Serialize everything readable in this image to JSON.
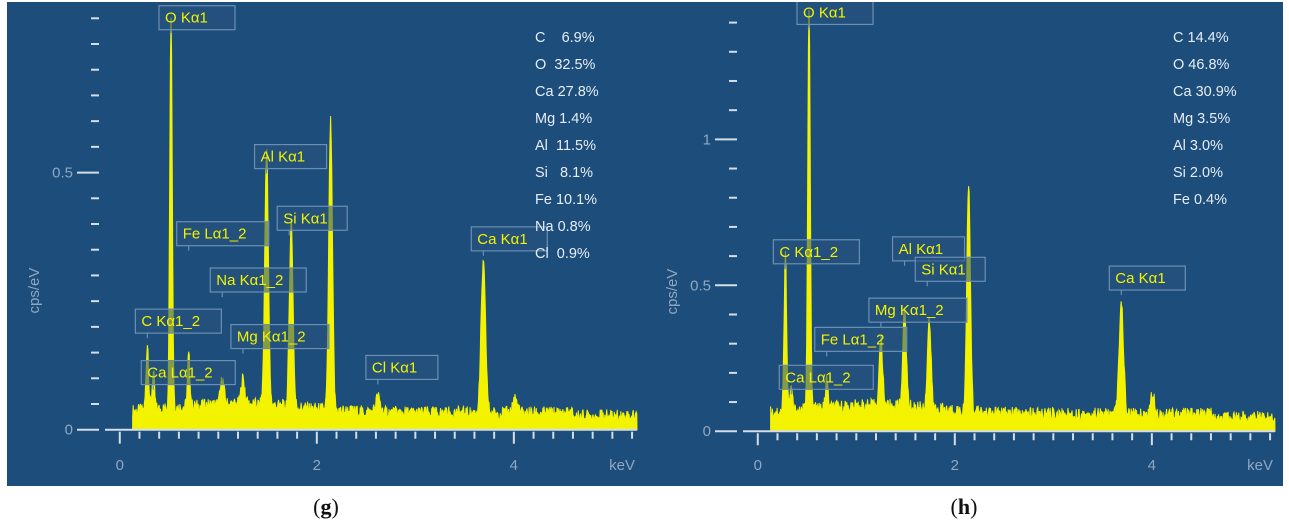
{
  "chart_data": [
    {
      "type": "line",
      "caption": "g",
      "xlabel": "keV",
      "ylabel": "cps/eV",
      "xlim": [
        -0.15,
        5.25
      ],
      "ylim": [
        -0.02,
        0.82
      ],
      "x_ticks": [
        "0",
        "2",
        "4"
      ],
      "x_tick_values": [
        0,
        2,
        4
      ],
      "y_ticks": [
        "0",
        "0.5"
      ],
      "y_tick_values": [
        0,
        0.5
      ],
      "colors": {
        "background": "#1d4d7a",
        "spectrum": "#f3f300",
        "label_text": "#f3f300",
        "label_border": "#6b8fb3",
        "axis": "#d4dde8"
      },
      "composition": [
        "C    6.9%",
        "O  32.5%",
        "Ca 27.8%",
        "Mg 1.4%",
        "Al  11.5%",
        "Si   8.1%",
        "Fe 10.1%",
        "Na 0.8%",
        "Cl  0.9%"
      ],
      "peaks": [
        {
          "label": "O Kα1",
          "x": 0.52,
          "y": 0.77
        },
        {
          "label": "C Kα1_2",
          "x": 0.28,
          "y": 0.13
        },
        {
          "label": "Ca Lα1_2",
          "x": 0.34,
          "y": 0.07
        },
        {
          "label": "Fe Lα1_2",
          "x": 0.7,
          "y": 0.1
        },
        {
          "label": "Na Kα1_2",
          "x": 1.04,
          "y": 0.05
        },
        {
          "label": "Mg Kα1_2",
          "x": 1.25,
          "y": 0.05
        },
        {
          "label": "Al Kα1",
          "x": 1.49,
          "y": 0.5
        },
        {
          "label": "Si Kα1",
          "x": 1.74,
          "y": 0.36
        },
        {
          "label": "",
          "x": 2.14,
          "y": 0.56
        },
        {
          "label": "Cl Kα1",
          "x": 2.62,
          "y": 0.03
        },
        {
          "label": "Ca Kα1",
          "x": 3.69,
          "y": 0.29
        },
        {
          "label": "",
          "x": 4.01,
          "y": 0.03
        }
      ],
      "annotations": [
        {
          "text": "O Kα1",
          "x": 0.52,
          "y": 0.77
        },
        {
          "text": "Al Kα1",
          "x": 1.49,
          "y": 0.5
        },
        {
          "text": "Si Kα1",
          "x": 1.72,
          "y": 0.38
        },
        {
          "text": "Fe Lα1_2",
          "x": 0.7,
          "y": 0.35
        },
        {
          "text": "Na Kα1_2",
          "x": 1.04,
          "y": 0.26
        },
        {
          "text": "C Kα1_2",
          "x": 0.28,
          "y": 0.18
        },
        {
          "text": "Mg Kα1_2",
          "x": 1.25,
          "y": 0.15
        },
        {
          "text": "Ca Lα1_2",
          "x": 0.34,
          "y": 0.08
        },
        {
          "text": "Cl Kα1",
          "x": 2.62,
          "y": 0.09
        },
        {
          "text": "Ca Kα1",
          "x": 3.69,
          "y": 0.34
        }
      ]
    },
    {
      "type": "line",
      "caption": "h",
      "xlabel": "keV",
      "ylabel": "cps/eV",
      "xlim": [
        -0.15,
        5.25
      ],
      "ylim": [
        -0.03,
        1.45
      ],
      "x_ticks": [
        "0",
        "2",
        "4"
      ],
      "x_tick_values": [
        0,
        2,
        4
      ],
      "y_ticks": [
        "0",
        "0.5",
        "1"
      ],
      "y_tick_values": [
        0,
        0.5,
        1
      ],
      "colors": {
        "background": "#1d4d7a",
        "spectrum": "#f3f300",
        "label_text": "#f3f300",
        "label_border": "#6b8fb3",
        "axis": "#d4dde8"
      },
      "composition": [
        "C 14.4%",
        "O 46.8%",
        "Ca 30.9%",
        "Mg 3.5%",
        "Al 3.0%",
        "Si 2.0%",
        "Fe 0.4%"
      ],
      "peaks": [
        {
          "label": "O Kα1",
          "x": 0.52,
          "y": 1.38
        },
        {
          "label": "C Kα1_2",
          "x": 0.28,
          "y": 0.55
        },
        {
          "label": "Ca Lα1_2",
          "x": 0.34,
          "y": 0.08
        },
        {
          "label": "Fe Lα1_2",
          "x": 0.7,
          "y": 0.1
        },
        {
          "label": "Mg Kα1_2",
          "x": 1.25,
          "y": 0.22
        },
        {
          "label": "Al Kα1",
          "x": 1.49,
          "y": 0.33
        },
        {
          "label": "Si Kα1",
          "x": 1.74,
          "y": 0.3
        },
        {
          "label": "",
          "x": 2.14,
          "y": 0.77
        },
        {
          "label": "Ca Kα1",
          "x": 3.69,
          "y": 0.38
        },
        {
          "label": "",
          "x": 4.01,
          "y": 0.07
        }
      ],
      "annotations": [
        {
          "text": "O Kα1",
          "x": 0.52,
          "y": 1.38
        },
        {
          "text": "C Kα1_2",
          "x": 0.28,
          "y": 0.56
        },
        {
          "text": "Al Kα1",
          "x": 1.49,
          "y": 0.57
        },
        {
          "text": "Si Kα1",
          "x": 1.72,
          "y": 0.5
        },
        {
          "text": "Mg Kα1_2",
          "x": 1.25,
          "y": 0.36
        },
        {
          "text": "Fe Lα1_2",
          "x": 0.7,
          "y": 0.26
        },
        {
          "text": "Ca Lα1_2",
          "x": 0.34,
          "y": 0.13
        },
        {
          "text": "Ca Kα1",
          "x": 3.69,
          "y": 0.47
        }
      ]
    }
  ]
}
